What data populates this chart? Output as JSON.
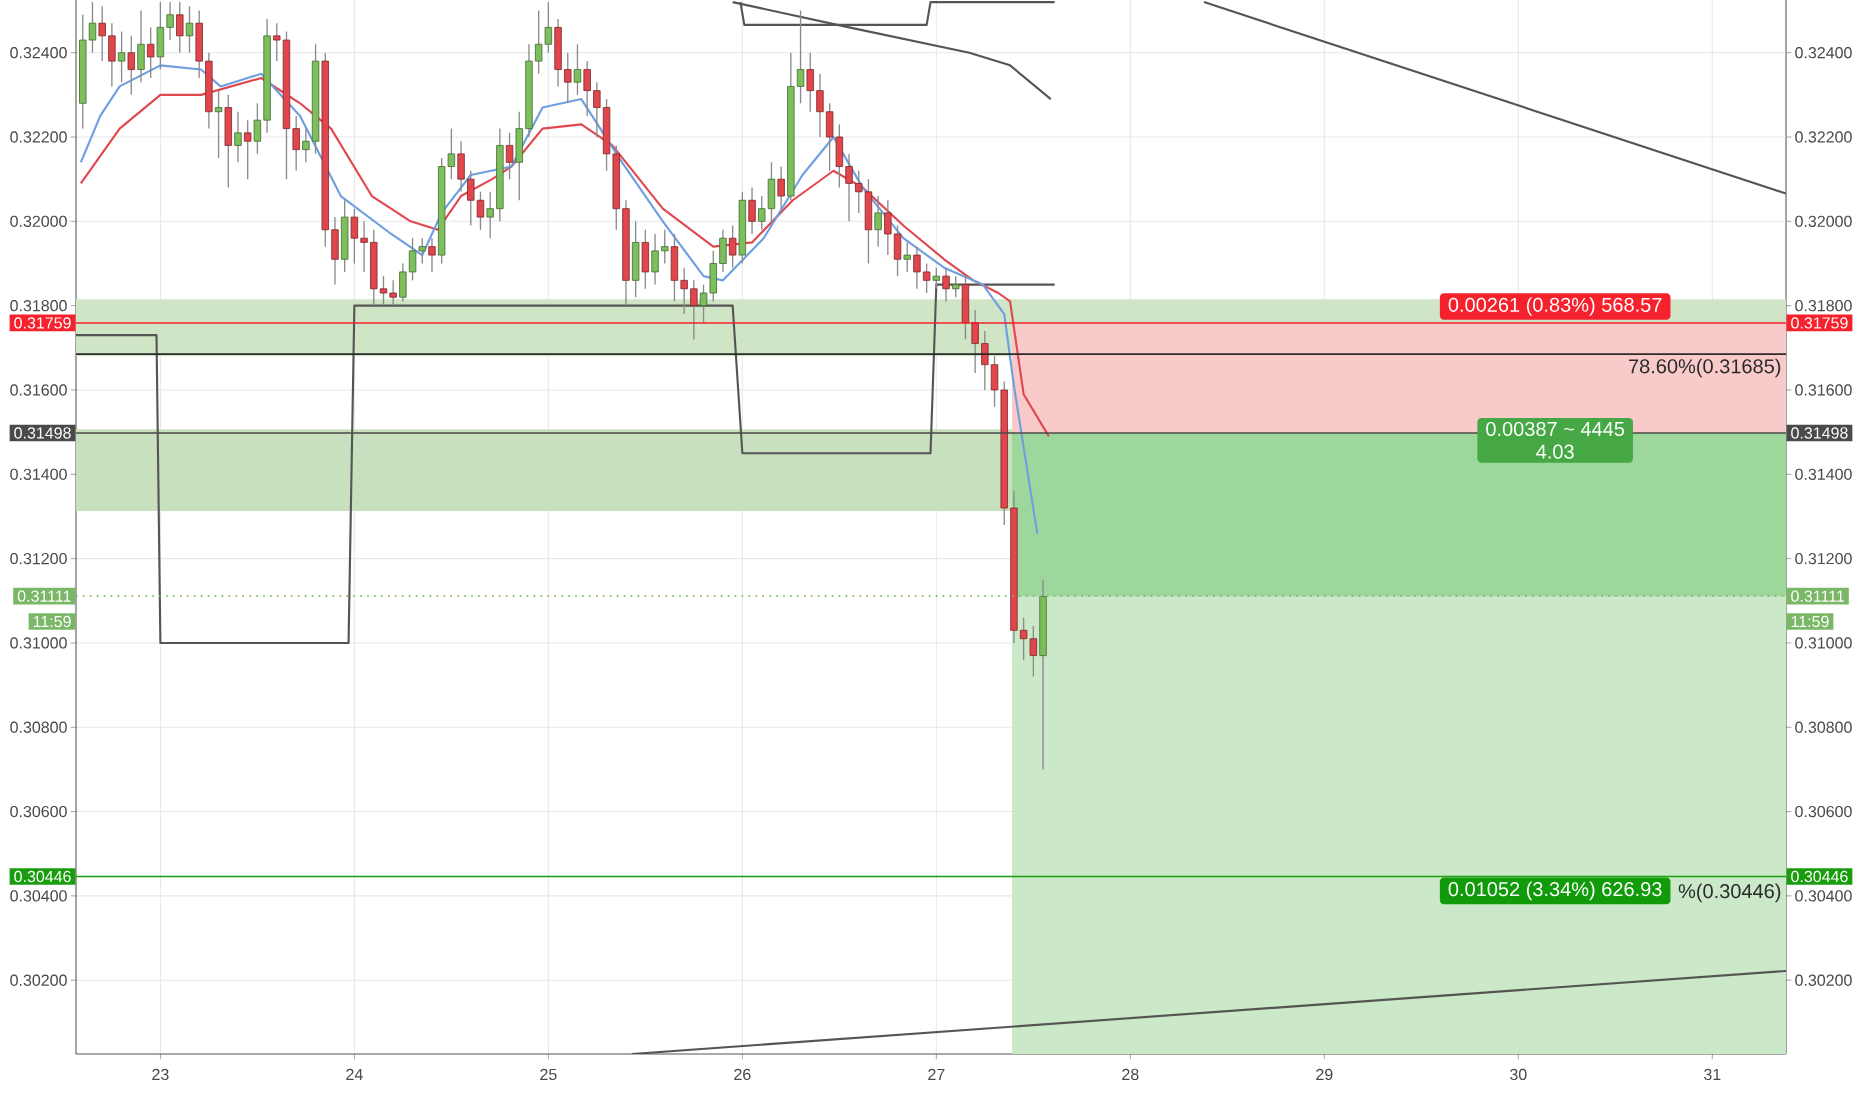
{
  "chart_data": {
    "type": "candlestick",
    "xlim": [
      22.565,
      31.38
    ],
    "ylim": [
      0.30025,
      0.32525
    ],
    "xticks": [
      23,
      24,
      25,
      26,
      27,
      28,
      29,
      30,
      31
    ],
    "yticks": [
      {
        "value": 0.302,
        "label": "0.30200"
      },
      {
        "value": 0.304,
        "label": "0.30400"
      },
      {
        "value": 0.306,
        "label": "0.30600"
      },
      {
        "value": 0.308,
        "label": "0.30800"
      },
      {
        "value": 0.31,
        "label": "0.31000"
      },
      {
        "value": 0.312,
        "label": "0.31200"
      },
      {
        "value": 0.314,
        "label": "0.31400"
      },
      {
        "value": 0.316,
        "label": "0.31600"
      },
      {
        "value": 0.318,
        "label": "0.31800"
      },
      {
        "value": 0.32,
        "label": "0.32000"
      },
      {
        "value": 0.322,
        "label": "0.32200"
      },
      {
        "value": 0.324,
        "label": "0.32400"
      }
    ],
    "y2lim": [
      0.30025,
      0.32525
    ],
    "y2ticks": [
      {
        "value": 0.302,
        "label": "0.30200"
      },
      {
        "value": 0.304,
        "label": "0.30400"
      },
      {
        "value": 0.306,
        "label": "0.30600"
      },
      {
        "value": 0.308,
        "label": "0.30800"
      },
      {
        "value": 0.31,
        "label": "0.31000"
      },
      {
        "value": 0.312,
        "label": "0.31200"
      },
      {
        "value": 0.314,
        "label": "0.31400"
      },
      {
        "value": 0.316,
        "label": "0.31600"
      },
      {
        "value": 0.318,
        "label": "0.31800"
      },
      {
        "value": 0.32,
        "label": "0.32000"
      },
      {
        "value": 0.322,
        "label": "0.32200"
      },
      {
        "value": 0.324,
        "label": "0.32400"
      }
    ],
    "grid": true,
    "series": [
      {
        "type": "area",
        "x": [
          27.39,
          31.38
        ],
        "values": [
          0.31759,
          0.31759
        ],
        "color": "#f9caca"
      },
      {
        "type": "area",
        "x": [
          27.39,
          31.38
        ],
        "values": [
          0.31498,
          0.31498
        ],
        "color": "#9ed79b"
      },
      {
        "type": "area",
        "x": [
          27.39,
          31.38
        ],
        "values": [
          0.31111,
          0.31111
        ],
        "color": "#cbe9c8"
      },
      {
        "type": "line",
        "color": "#555555",
        "x": [
          22.565,
          22.98,
          23.0,
          23.97,
          24.0,
          25.95,
          26.0,
          26.97,
          27.0,
          27.61
        ],
        "values": [
          0.3173,
          0.3173,
          0.31,
          0.31,
          0.318,
          0.318,
          0.3145,
          0.3145,
          0.3185,
          0.3185
        ]
      },
      {
        "type": "line",
        "color": "#555555",
        "x": [
          25.99,
          26.01,
          26.95,
          26.97,
          27.61
        ],
        "values": [
          0.3252,
          0.32466,
          0.32466,
          0.3252,
          0.3252
        ]
      },
      {
        "type": "line",
        "color": "#555555",
        "x": [
          25.95,
          26.55,
          27.17,
          27.38,
          27.59
        ],
        "values": [
          0.3252,
          0.3246,
          0.324,
          0.3237,
          0.3229
        ]
      },
      {
        "type": "line",
        "color": "#555555",
        "x": [
          28.38,
          31.38
        ],
        "values": [
          0.3252,
          0.32066
        ]
      },
      {
        "type": "line",
        "color": "#555555",
        "x": [
          25.43,
          31.38
        ],
        "values": [
          0.30025,
          0.30222
        ]
      },
      {
        "type": "line",
        "color": "#e0484f",
        "x": [
          22.59,
          22.79,
          23.0,
          23.21,
          23.52,
          23.72,
          23.88,
          24.09,
          24.29,
          24.43,
          24.55,
          24.71,
          24.81,
          24.97,
          25.17,
          25.33,
          25.59,
          25.85,
          26.05,
          26.26,
          26.47,
          26.62,
          26.83,
          27.04,
          27.19,
          27.32,
          27.38,
          27.45,
          27.58
        ],
        "values": [
          0.3209,
          0.3222,
          0.323,
          0.323,
          0.3234,
          0.3228,
          0.3222,
          0.3206,
          0.32,
          0.3198,
          0.3206,
          0.321,
          0.3213,
          0.3222,
          0.3223,
          0.3218,
          0.3203,
          0.3194,
          0.3195,
          0.3205,
          0.3212,
          0.3208,
          0.3199,
          0.3191,
          0.3186,
          0.3183,
          0.3181,
          0.3159,
          0.3149
        ]
      },
      {
        "type": "line",
        "color": "#6f9fe0",
        "x": [
          22.59,
          22.69,
          22.79,
          23.0,
          23.21,
          23.31,
          23.52,
          23.72,
          23.93,
          24.19,
          24.35,
          24.45,
          24.6,
          24.81,
          24.97,
          25.17,
          25.38,
          25.59,
          25.8,
          25.9,
          26.11,
          26.31,
          26.47,
          26.62,
          26.83,
          27.04,
          27.24,
          27.35,
          27.4,
          27.52
        ],
        "values": [
          0.3214,
          0.3225,
          0.3232,
          0.3237,
          0.3236,
          0.3232,
          0.3235,
          0.3225,
          0.3206,
          0.3197,
          0.3192,
          0.3202,
          0.3211,
          0.3213,
          0.3227,
          0.3229,
          0.3214,
          0.32,
          0.3187,
          0.3186,
          0.3196,
          0.3211,
          0.322,
          0.3208,
          0.3196,
          0.3189,
          0.3185,
          0.3178,
          0.3161,
          0.3126
        ]
      },
      {
        "color": "#7cbf5c",
        "x": [
          22.6,
          22.65,
          22.8,
          22.9,
          23.0,
          23.05,
          23.15,
          23.3,
          23.4,
          23.5,
          23.55,
          23.75,
          23.8,
          23.95,
          24.25,
          24.3,
          24.35,
          24.45,
          24.5,
          24.7,
          24.75,
          24.85,
          24.9,
          24.95,
          25.0,
          25.15,
          25.45,
          25.55,
          25.6,
          25.8,
          25.85,
          25.9,
          26.0,
          26.1,
          26.15,
          26.25,
          26.3,
          26.7,
          26.85,
          27.0,
          27.1,
          27.55
        ],
        "ohlc": [
          [
            0.3228,
            0.3249,
            0.3222,
            0.3243
          ],
          [
            0.3243,
            0.3252,
            0.324,
            0.3247
          ],
          [
            0.3238,
            0.3245,
            0.3233,
            0.324
          ],
          [
            0.3236,
            0.325,
            0.3233,
            0.3242
          ],
          [
            0.3239,
            0.3252,
            0.3236,
            0.3246
          ],
          [
            0.3246,
            0.3252,
            0.3243,
            0.3249
          ],
          [
            0.3244,
            0.3251,
            0.324,
            0.3247
          ],
          [
            0.3226,
            0.3231,
            0.3215,
            0.3227
          ],
          [
            0.3218,
            0.3226,
            0.3214,
            0.3221
          ],
          [
            0.3219,
            0.3228,
            0.3216,
            0.3224
          ],
          [
            0.3224,
            0.3248,
            0.3221,
            0.3244
          ],
          [
            0.3217,
            0.3222,
            0.3214,
            0.3219
          ],
          [
            0.3219,
            0.3242,
            0.3216,
            0.3238
          ],
          [
            0.3191,
            0.3205,
            0.3188,
            0.3201
          ],
          [
            0.3182,
            0.319,
            0.3181,
            0.3188
          ],
          [
            0.3188,
            0.3196,
            0.3186,
            0.3193
          ],
          [
            0.3193,
            0.3196,
            0.319,
            0.3194
          ],
          [
            0.3192,
            0.3215,
            0.319,
            0.3213
          ],
          [
            0.3213,
            0.3222,
            0.321,
            0.3216
          ],
          [
            0.3201,
            0.3207,
            0.3196,
            0.3203
          ],
          [
            0.3203,
            0.3222,
            0.32,
            0.3218
          ],
          [
            0.3214,
            0.3226,
            0.3205,
            0.3222
          ],
          [
            0.3222,
            0.3242,
            0.322,
            0.3238
          ],
          [
            0.3238,
            0.325,
            0.3235,
            0.3242
          ],
          [
            0.3242,
            0.3252,
            0.324,
            0.3246
          ],
          [
            0.3233,
            0.3242,
            0.323,
            0.3236
          ],
          [
            0.3186,
            0.32,
            0.3182,
            0.3195
          ],
          [
            0.3188,
            0.3197,
            0.3185,
            0.3193
          ],
          [
            0.3193,
            0.3198,
            0.319,
            0.3194
          ],
          [
            0.318,
            0.3185,
            0.3176,
            0.3183
          ],
          [
            0.3183,
            0.3193,
            0.3181,
            0.319
          ],
          [
            0.319,
            0.3198,
            0.3188,
            0.3196
          ],
          [
            0.3192,
            0.3207,
            0.319,
            0.3205
          ],
          [
            0.32,
            0.3206,
            0.3198,
            0.3203
          ],
          [
            0.3203,
            0.3214,
            0.32,
            0.321
          ],
          [
            0.3206,
            0.324,
            0.3205,
            0.3232
          ],
          [
            0.3232,
            0.325,
            0.3228,
            0.3236
          ],
          [
            0.3198,
            0.3206,
            0.3194,
            0.3202
          ],
          [
            0.3191,
            0.3195,
            0.3188,
            0.3192
          ],
          [
            0.3186,
            0.3189,
            0.3184,
            0.3187
          ],
          [
            0.3184,
            0.3187,
            0.3182,
            0.3185
          ],
          [
            0.3097,
            0.3115,
            0.307,
            0.3111
          ]
        ]
      },
      {
        "color": "#e0464b",
        "x": [
          22.7,
          22.75,
          22.85,
          22.95,
          23.1,
          23.2,
          23.25,
          23.35,
          23.45,
          23.6,
          23.65,
          23.7,
          23.85,
          23.9,
          24.0,
          24.05,
          24.1,
          24.15,
          24.2,
          24.4,
          24.55,
          24.6,
          24.65,
          24.8,
          25.05,
          25.1,
          25.2,
          25.25,
          25.3,
          25.35,
          25.4,
          25.5,
          25.65,
          25.7,
          25.75,
          25.95,
          26.05,
          26.2,
          26.35,
          26.4,
          26.45,
          26.5,
          26.55,
          26.6,
          26.65,
          26.75,
          26.8,
          26.9,
          26.95,
          27.05,
          27.15,
          27.2,
          27.25,
          27.3,
          27.35,
          27.4,
          27.45,
          27.5
        ],
        "ohlc": [
          [
            0.3247,
            0.3251,
            0.3238,
            0.3244
          ],
          [
            0.3244,
            0.3247,
            0.3232,
            0.3238
          ],
          [
            0.324,
            0.3244,
            0.323,
            0.3236
          ],
          [
            0.3242,
            0.3246,
            0.3234,
            0.3239
          ],
          [
            0.3249,
            0.3252,
            0.324,
            0.3244
          ],
          [
            0.3247,
            0.325,
            0.3234,
            0.3238
          ],
          [
            0.3238,
            0.324,
            0.3222,
            0.3226
          ],
          [
            0.3227,
            0.323,
            0.3208,
            0.3218
          ],
          [
            0.3221,
            0.3224,
            0.321,
            0.3219
          ],
          [
            0.3244,
            0.3247,
            0.3238,
            0.3243
          ],
          [
            0.3243,
            0.3245,
            0.321,
            0.3222
          ],
          [
            0.3222,
            0.3225,
            0.3212,
            0.3217
          ],
          [
            0.3238,
            0.324,
            0.3194,
            0.3198
          ],
          [
            0.3198,
            0.3201,
            0.3185,
            0.3191
          ],
          [
            0.3201,
            0.3203,
            0.319,
            0.3196
          ],
          [
            0.3196,
            0.32,
            0.3188,
            0.3195
          ],
          [
            0.3195,
            0.3198,
            0.318,
            0.3184
          ],
          [
            0.3184,
            0.3187,
            0.318,
            0.3183
          ],
          [
            0.3183,
            0.3186,
            0.318,
            0.3182
          ],
          [
            0.3194,
            0.3196,
            0.3188,
            0.3192
          ],
          [
            0.3216,
            0.3219,
            0.3207,
            0.321
          ],
          [
            0.321,
            0.3212,
            0.3199,
            0.3205
          ],
          [
            0.3205,
            0.3207,
            0.3198,
            0.3201
          ],
          [
            0.3218,
            0.3221,
            0.321,
            0.3214
          ],
          [
            0.3246,
            0.3248,
            0.3232,
            0.3236
          ],
          [
            0.3236,
            0.324,
            0.3228,
            0.3233
          ],
          [
            0.3236,
            0.3238,
            0.3225,
            0.3231
          ],
          [
            0.3231,
            0.3233,
            0.322,
            0.3227
          ],
          [
            0.3227,
            0.3229,
            0.3212,
            0.3216
          ],
          [
            0.3216,
            0.3218,
            0.3198,
            0.3203
          ],
          [
            0.3203,
            0.3205,
            0.318,
            0.3186
          ],
          [
            0.3195,
            0.3198,
            0.3184,
            0.3188
          ],
          [
            0.3194,
            0.3197,
            0.3181,
            0.3186
          ],
          [
            0.3186,
            0.3189,
            0.3178,
            0.3184
          ],
          [
            0.3184,
            0.3186,
            0.3172,
            0.318
          ],
          [
            0.3196,
            0.3199,
            0.3189,
            0.3192
          ],
          [
            0.3205,
            0.3208,
            0.3197,
            0.32
          ],
          [
            0.321,
            0.3213,
            0.3203,
            0.3206
          ],
          [
            0.3236,
            0.324,
            0.3226,
            0.3231
          ],
          [
            0.3231,
            0.3235,
            0.322,
            0.3226
          ],
          [
            0.3226,
            0.3228,
            0.3212,
            0.322
          ],
          [
            0.322,
            0.3223,
            0.3208,
            0.3213
          ],
          [
            0.3213,
            0.3216,
            0.32,
            0.3209
          ],
          [
            0.3209,
            0.3212,
            0.3202,
            0.3207
          ],
          [
            0.3207,
            0.321,
            0.319,
            0.3198
          ],
          [
            0.3202,
            0.3205,
            0.3192,
            0.3197
          ],
          [
            0.3197,
            0.3199,
            0.3187,
            0.3191
          ],
          [
            0.3192,
            0.3194,
            0.3184,
            0.3188
          ],
          [
            0.3188,
            0.319,
            0.3183,
            0.3186
          ],
          [
            0.3187,
            0.3189,
            0.3181,
            0.3184
          ],
          [
            0.3185,
            0.3187,
            0.3172,
            0.3176
          ],
          [
            0.3176,
            0.3179,
            0.3164,
            0.3171
          ],
          [
            0.3171,
            0.3174,
            0.316,
            0.3166
          ],
          [
            0.3166,
            0.3168,
            0.3156,
            0.316
          ],
          [
            0.316,
            0.3162,
            0.3128,
            0.3132
          ],
          [
            0.3132,
            0.3136,
            0.31,
            0.3103
          ],
          [
            0.3103,
            0.3106,
            0.3096,
            0.3101
          ],
          [
            0.3101,
            0.3104,
            0.3092,
            0.3097
          ]
        ]
      }
    ],
    "bands": [
      {
        "axis": "y",
        "from": 0.3168,
        "to": 0.31815,
        "color": "#cfe5c5"
      },
      {
        "axis": "y",
        "from": 0.31313,
        "to": 0.31507,
        "color": "#c8e0bd"
      }
    ],
    "ref_lines": [
      {
        "axis": "y",
        "value": 0.31759,
        "label": "0.31759",
        "color": "#f5212d"
      },
      {
        "axis": "y",
        "value": 0.31685,
        "label": "78.60%(0.31685)"
      },
      {
        "axis": "y",
        "value": 0.31498,
        "label": "0.31498",
        "color": "#4a4a4a"
      },
      {
        "axis": "y",
        "value": 0.31111,
        "label": "0.31111",
        "color": "#7ab868",
        "line_style": "dotted"
      },
      {
        "axis": "y",
        "value": 0.30446,
        "label": "0.30446",
        "color": "#1a9c0f"
      }
    ],
    "annotations": [
      "0.00261 (0.83%) 568.57",
      "0.00387 ~ 4445",
      "4.03",
      "0.01052 (3.34%) 626.93",
      "%(0.30446)",
      "11:59"
    ]
  }
}
